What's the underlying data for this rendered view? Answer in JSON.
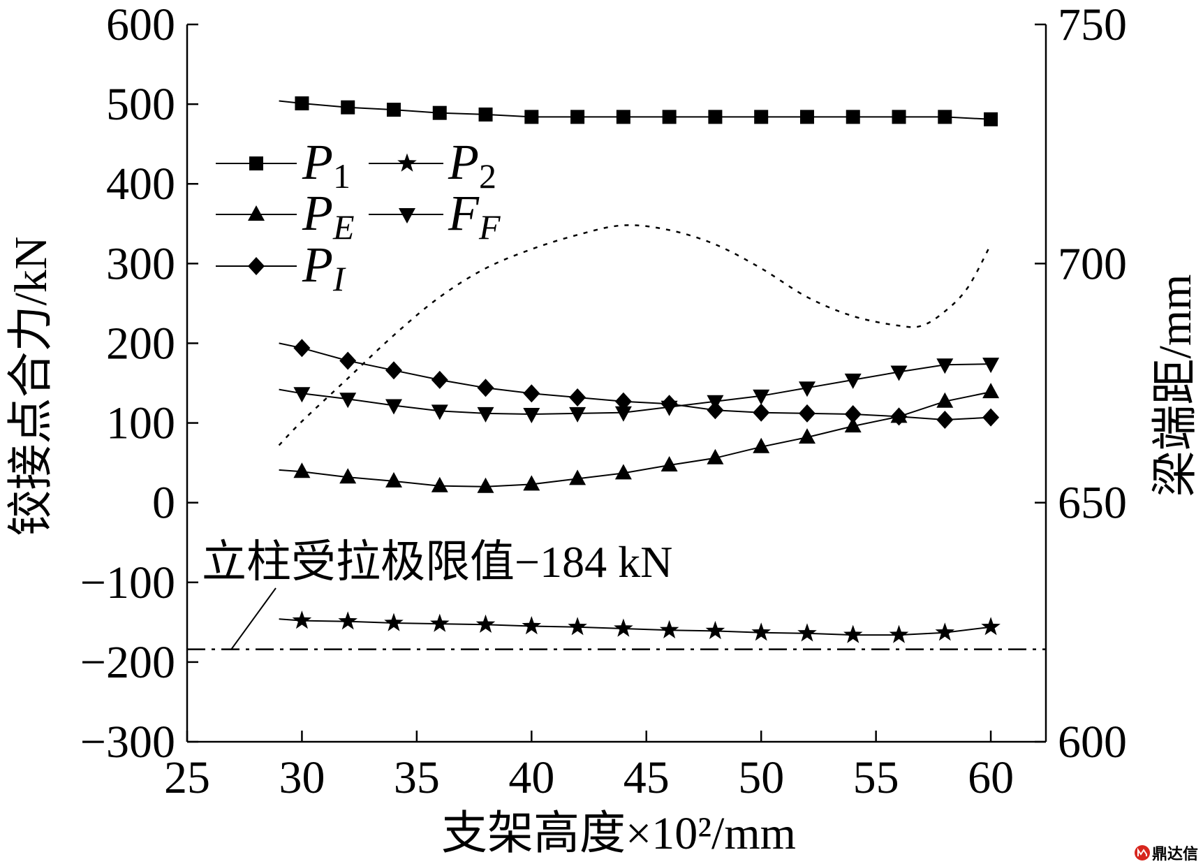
{
  "chart_data": {
    "type": "line",
    "xlabel": "支架高度×10²/mm",
    "ylabel": "铰接点合力/kN",
    "ylabel_right": "梁端距/mm",
    "xlim": [
      25,
      62.4
    ],
    "ylim": [
      -300,
      600
    ],
    "ylim_right": [
      600,
      750
    ],
    "xticks": [
      "25",
      "30",
      "35",
      "40",
      "45",
      "50",
      "55",
      "60"
    ],
    "yticks": [
      "600",
      "500",
      "400",
      "300",
      "200",
      "100",
      "0",
      "−100",
      "−200",
      "−300"
    ],
    "yticks_right": [
      "750",
      "700",
      "650",
      "600"
    ],
    "grid": false,
    "legend_placement": "top-left",
    "x": [
      30,
      32,
      34,
      36,
      38,
      40,
      42,
      44,
      46,
      48,
      50,
      52,
      54,
      56,
      58,
      60
    ],
    "series": [
      {
        "name": "P",
        "sub": "1",
        "marker": "square",
        "line_start": [
          29,
          504
        ],
        "values": [
          501,
          496,
          493,
          489,
          487,
          484,
          484,
          484,
          484,
          484,
          484,
          484,
          484,
          484,
          484,
          481
        ]
      },
      {
        "name": "P",
        "sub": "2",
        "marker": "star",
        "line_start": [
          29,
          -146
        ],
        "values": [
          -148,
          -149,
          -151,
          -152,
          -153,
          -155,
          -156,
          -158,
          -160,
          -161,
          -163,
          -164,
          -166,
          -166,
          -163,
          -156
        ]
      },
      {
        "name": "P",
        "sub": "E",
        "marker": "triangle-up",
        "line_start": [
          29,
          41
        ],
        "values": [
          39,
          32,
          27,
          21,
          20,
          23,
          30,
          37,
          47,
          56,
          70,
          82,
          96,
          108,
          127,
          139
        ]
      },
      {
        "name": "F",
        "sub": "F",
        "marker": "triangle-down",
        "line_start": [
          29,
          142
        ],
        "values": [
          137,
          130,
          122,
          115,
          112,
          111,
          112,
          113,
          120,
          127,
          134,
          144,
          154,
          164,
          173,
          174
        ]
      },
      {
        "name": "P",
        "sub": "I",
        "marker": "diamond",
        "line_start": [
          29,
          200
        ],
        "values": [
          194,
          178,
          166,
          154,
          144,
          137,
          132,
          127,
          124,
          116,
          113,
          112,
          111,
          108,
          104,
          107
        ]
      }
    ],
    "right_axis_curve": {
      "x": [
        29,
        30,
        32,
        34,
        36,
        38,
        40,
        42,
        44,
        46,
        48,
        50,
        52,
        54,
        56,
        57,
        58,
        59,
        60
      ],
      "values": [
        662,
        667,
        676,
        685,
        693,
        699,
        703,
        706,
        708,
        707,
        704,
        699,
        693,
        689,
        687,
        687,
        690,
        695,
        704
      ]
    },
    "reference_line": {
      "value": -184,
      "label": "立柱受拉极限值−184 kN"
    }
  },
  "colors": {
    "ink": "#000000",
    "background": "#ffffff",
    "watermark": "#d7261e"
  },
  "watermark": {
    "text": "鼎达信"
  }
}
